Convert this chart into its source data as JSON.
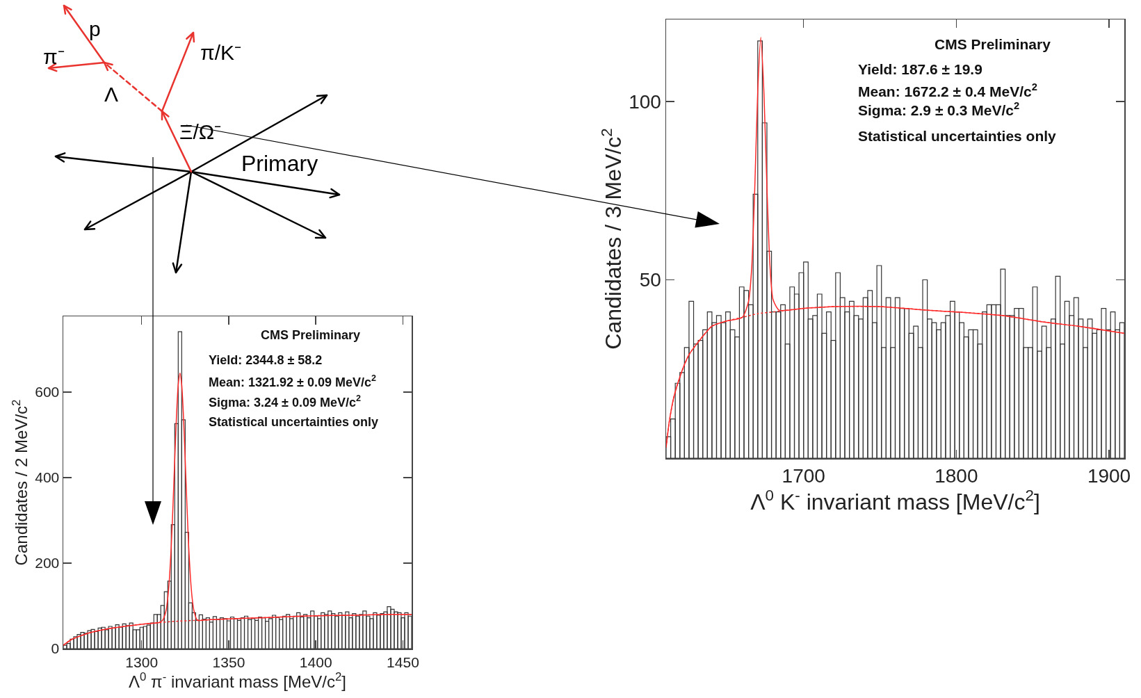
{
  "chart_data": [
    {
      "type": "other",
      "annotations": [
        "p",
        "π⁻",
        "Λ",
        "π/K⁻",
        "Ξ/Ω⁻",
        "Primary"
      ]
    },
    {
      "type": "histogram",
      "xlabel": "Λ$^{0}$ π$^{-}$ invariant mass [MeV/c$^{2}$]",
      "ylabel": "Candidates / 2 MeV/c$^{2}$",
      "color": "#333333",
      "bins": [
        1255,
        1257,
        1259,
        1261,
        1263,
        1265,
        1267,
        1269,
        1271,
        1273,
        1275,
        1277,
        1279,
        1281,
        1283,
        1285,
        1287,
        1289,
        1291,
        1293,
        1295,
        1297,
        1299,
        1301,
        1303,
        1305,
        1307,
        1309,
        1311,
        1313,
        1315,
        1317,
        1319,
        1321,
        1323,
        1325,
        1327,
        1329,
        1331,
        1333,
        1335,
        1337,
        1339,
        1341,
        1343,
        1345,
        1347,
        1349,
        1351,
        1353,
        1355,
        1357,
        1359,
        1361,
        1363,
        1365,
        1367,
        1369,
        1371,
        1373,
        1375,
        1377,
        1379,
        1381,
        1383,
        1385,
        1387,
        1389,
        1391,
        1393,
        1395,
        1397,
        1399,
        1401,
        1403,
        1405,
        1407,
        1409,
        1411,
        1413,
        1415,
        1417,
        1419,
        1421,
        1423,
        1425,
        1427,
        1429,
        1431,
        1433,
        1435,
        1437,
        1439,
        1441,
        1443,
        1445,
        1447,
        1449,
        1451,
        1453,
        1455
      ],
      "values": [
        8,
        12,
        22,
        28,
        33,
        38,
        36,
        42,
        45,
        40,
        48,
        50,
        44,
        52,
        48,
        56,
        50,
        58,
        54,
        60,
        44,
        44,
        50,
        52,
        55,
        60,
        80,
        80,
        101,
        133,
        158,
        290,
        526,
        741,
        535,
        272,
        107,
        84,
        66,
        79,
        69,
        72,
        62,
        75,
        68,
        72,
        70,
        65,
        74,
        70,
        66,
        72,
        76,
        68,
        70,
        66,
        74,
        72,
        64,
        70,
        78,
        73,
        68,
        76,
        80,
        70,
        76,
        84,
        74,
        80,
        72,
        88,
        76,
        70,
        84,
        80,
        88,
        82,
        76,
        84,
        78,
        86,
        72,
        82,
        76,
        80,
        88,
        76,
        70,
        84,
        78,
        82,
        86,
        98,
        92,
        86,
        84,
        72,
        84,
        76
      ],
      "series": [
        {
          "type": "line",
          "color": "#ff2a2a",
          "x": [
            1255,
            1260,
            1270,
            1280,
            1290,
            1300,
            1305,
            1310,
            1312,
            1314,
            1315,
            1316,
            1317,
            1318,
            1319,
            1320,
            1321,
            1322,
            1323,
            1324,
            1325,
            1326,
            1327,
            1328,
            1329,
            1330,
            1332,
            1334,
            1340,
            1360,
            1380,
            1400,
            1420,
            1440,
            1455
          ],
          "values": [
            8,
            22,
            37,
            46,
            52,
            57,
            59,
            61,
            66,
            89,
            118,
            167,
            239,
            335,
            442,
            544,
            617,
            644,
            617,
            544,
            442,
            335,
            239,
            167,
            118,
            89,
            66,
            66,
            68,
            71,
            74,
            77,
            78,
            80,
            80
          ]
        },
        {
          "type": "line",
          "line_style": "dotted",
          "color": "#ff2a2a",
          "x": [
            1255,
            1260,
            1270,
            1280,
            1290,
            1300,
            1310,
            1320,
            1330,
            1340,
            1360,
            1380,
            1400,
            1420,
            1440,
            1455
          ],
          "values": [
            8,
            22,
            37,
            46,
            52,
            57,
            61,
            64,
            66,
            68,
            71,
            74,
            77,
            78,
            80,
            80
          ]
        }
      ],
      "xlim": [
        1255,
        1455
      ],
      "ylim": [
        0,
        777
      ],
      "xticks": [
        1300,
        1350,
        1400,
        1450
      ],
      "yticks": [
        0,
        200,
        400,
        600
      ],
      "annotations": [
        "CMS Preliminary",
        "Yield: 2344.8 ± 58.2",
        "Mean: 1321.92 ± 0.09 MeV/c$^{2}$",
        "Sigma: 3.24 ± 0.09 MeV/c$^{2}$",
        "Statistical uncertainties only"
      ]
    },
    {
      "type": "histogram",
      "xlabel": "Λ$^{0}$ K$^{-}$ invariant mass [MeV/c$^{2}$]",
      "ylabel": "Candidates / 3 MeV/c$^{2}$",
      "color": "#333333",
      "bins": [
        1610,
        1613,
        1616,
        1619,
        1622,
        1625,
        1628,
        1631,
        1634,
        1637,
        1640,
        1643,
        1646,
        1649,
        1652,
        1655,
        1658,
        1661,
        1664,
        1667,
        1670,
        1673,
        1676,
        1679,
        1682,
        1685,
        1688,
        1691,
        1694,
        1697,
        1700,
        1703,
        1706,
        1709,
        1712,
        1715,
        1718,
        1721,
        1724,
        1727,
        1730,
        1733,
        1736,
        1739,
        1742,
        1745,
        1748,
        1751,
        1754,
        1757,
        1760,
        1763,
        1766,
        1769,
        1772,
        1775,
        1778,
        1781,
        1784,
        1787,
        1790,
        1793,
        1796,
        1799,
        1802,
        1805,
        1808,
        1811,
        1814,
        1817,
        1820,
        1823,
        1826,
        1829,
        1832,
        1835,
        1838,
        1841,
        1844,
        1847,
        1850,
        1853,
        1856,
        1859,
        1862,
        1865,
        1868,
        1871,
        1874,
        1877,
        1880,
        1883,
        1886,
        1889,
        1892,
        1895,
        1898,
        1901,
        1904,
        1907,
        1910
      ],
      "values": [
        6,
        11,
        21,
        24,
        31,
        44,
        32,
        33,
        36,
        41,
        38,
        40,
        38,
        41,
        36,
        34,
        48,
        47,
        43,
        74,
        117,
        94,
        58,
        41,
        41,
        43,
        32,
        48,
        46,
        52,
        55,
        39,
        40,
        46,
        35,
        41,
        33,
        52,
        45,
        41,
        44,
        40,
        39,
        45,
        47,
        38,
        54,
        31,
        45,
        31,
        45,
        42,
        42,
        35,
        37,
        31,
        50,
        39,
        38,
        36,
        38,
        40,
        44,
        41,
        38,
        34,
        36,
        36,
        32,
        41,
        43,
        43,
        43,
        53,
        40,
        40,
        42,
        42,
        31,
        31,
        48,
        30,
        37,
        31,
        39,
        51,
        32,
        44,
        40,
        45,
        39,
        31,
        39,
        35,
        36,
        42,
        36,
        41,
        36,
        38
      ],
      "series": [
        {
          "type": "line",
          "color": "#ff2a2a",
          "x": [
            1610,
            1612,
            1615,
            1620,
            1625,
            1630,
            1640,
            1650,
            1660,
            1664,
            1666,
            1668,
            1670,
            1672,
            1674,
            1676,
            1678,
            1680,
            1684,
            1700,
            1720,
            1750,
            1780,
            1800,
            1830,
            1860,
            1880,
            1910
          ],
          "values": [
            3,
            10,
            17,
            24,
            29,
            32,
            37,
            38.5,
            39.5,
            44,
            53,
            75,
            103,
            118,
            103,
            76,
            54,
            44.5,
            41.5,
            42,
            42.5,
            42.5,
            41.5,
            41,
            40,
            38,
            37,
            35
          ]
        },
        {
          "type": "line",
          "line_style": "dotted",
          "color": "#ff2a2a",
          "x": [
            1610,
            1612,
            1615,
            1620,
            1625,
            1630,
            1640,
            1650,
            1660,
            1670,
            1680,
            1700,
            1720,
            1750,
            1780,
            1800,
            1830,
            1860,
            1880,
            1910
          ],
          "values": [
            3,
            10,
            17,
            24,
            29,
            32,
            37,
            38.5,
            39.5,
            40.5,
            41,
            42,
            42.5,
            42.5,
            41.5,
            41,
            40,
            38,
            37,
            35
          ]
        }
      ],
      "xlim": [
        1610,
        1910
      ],
      "ylim": [
        0,
        123
      ],
      "xticks": [
        1700,
        1800,
        1900
      ],
      "yticks": [
        50,
        100
      ],
      "annotations": [
        "CMS Preliminary",
        "Yield: 187.6 ± 19.9",
        "Mean: 1672.2 ± 0.4 MeV/c$^{2}$",
        "Sigma: 2.9 ± 0.3 MeV/c$^{2}$",
        "Statistical uncertainties only"
      ]
    }
  ]
}
